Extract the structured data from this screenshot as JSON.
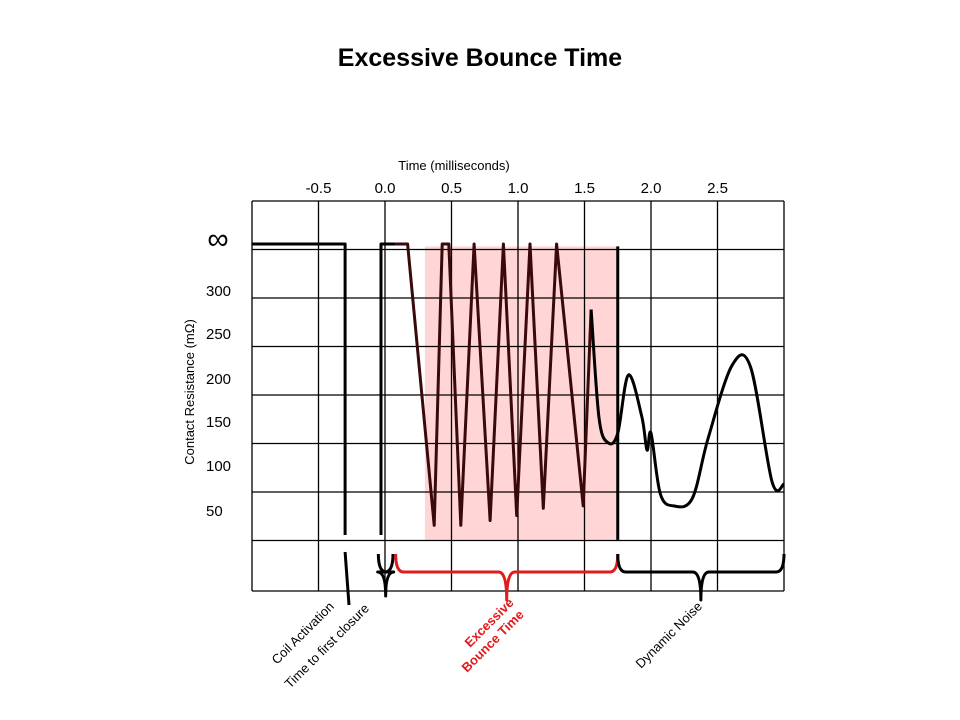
{
  "slide": {
    "title": "Excessive Bounce Time"
  },
  "chart_data": {
    "type": "line",
    "title": "Excessive Bounce Time",
    "xlabel": "Time  (milliseconds)",
    "ylabel": "Contact  Resistance  (mΩ)",
    "x_ticks": [
      "-0.5",
      "0.0",
      "0.5",
      "1.0",
      "1.5",
      "2.0",
      "2.5"
    ],
    "y_ticks": [
      "∞",
      "300",
      "250",
      "200",
      "150",
      "100",
      "50"
    ],
    "grid": true,
    "xlim": [
      -0.75,
      3.25
    ],
    "y_rows": 7,
    "colors": {
      "trace": "#3a0a0a",
      "bracket_red": "#e01b1b",
      "highlight": "#ffd5d5",
      "grid": "#000000"
    },
    "highlight": {
      "x_start": 0.55,
      "x_end": 2.0,
      "y_top": 0.05,
      "y_bottom": 6.1
    },
    "series": [
      {
        "coil": [
          [
            -0.75,
            0.0
          ],
          [
            -0.05,
            0.0
          ],
          [
            -0.05,
            6.0
          ]
        ],
        "closure": [
          [
            0.22,
            6.0
          ],
          [
            0.22,
            0.0
          ],
          [
            0.33,
            0.0
          ]
        ],
        "bounce": [
          [
            0.33,
            0.0
          ],
          [
            0.42,
            0.0
          ],
          [
            0.62,
            5.8
          ],
          [
            0.68,
            0.0
          ],
          [
            0.73,
            0.0
          ],
          [
            0.82,
            5.8
          ],
          [
            0.92,
            0.0
          ],
          [
            1.04,
            5.7
          ],
          [
            1.14,
            0.0
          ],
          [
            1.24,
            5.6
          ],
          [
            1.34,
            0.0
          ],
          [
            1.44,
            5.45
          ],
          [
            1.54,
            0.0
          ],
          [
            1.74,
            5.4
          ],
          [
            1.8,
            1.35
          ]
        ],
        "decay": [
          [
            1.8,
            1.35
          ],
          [
            1.86,
            3.6
          ],
          [
            1.93,
            4.1
          ],
          [
            2.0,
            3.9
          ],
          [
            2.08,
            2.7
          ],
          [
            2.18,
            3.55
          ],
          [
            2.22,
            4.25
          ],
          [
            2.25,
            3.9
          ],
          [
            2.32,
            5.15
          ],
          [
            2.42,
            5.4
          ],
          [
            2.56,
            5.25
          ],
          [
            2.68,
            4.0
          ],
          [
            2.86,
            2.5
          ],
          [
            3.0,
            2.55
          ],
          [
            3.16,
            4.9
          ],
          [
            3.25,
            4.95
          ]
        ]
      }
    ],
    "annotations": {
      "coil_activation": "Coil Activation",
      "time_to_first_closure": "Time to first closure",
      "excessive_line1": "Excessive",
      "excessive_line2": "Bounce Time",
      "dynamic_noise": "Dynamic Noise"
    }
  }
}
